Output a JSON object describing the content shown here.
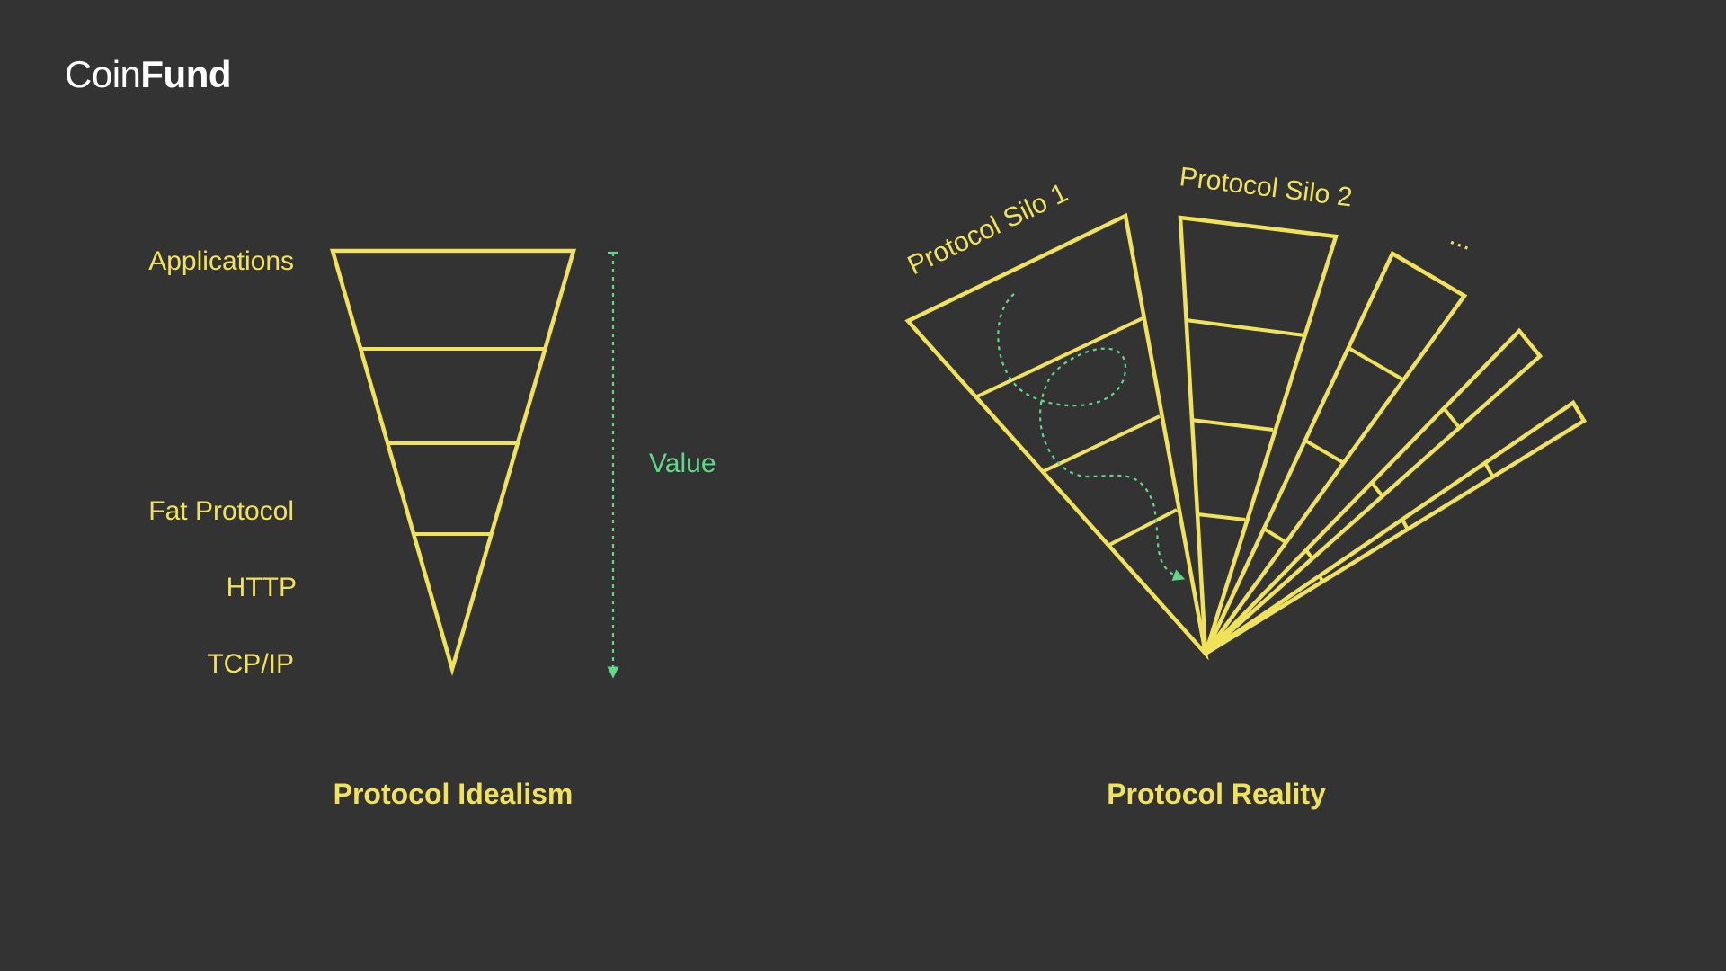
{
  "brand": {
    "logo_light": "Coin",
    "logo_bold": "Fund"
  },
  "idealism": {
    "layer_labels": {
      "applications": "Applications",
      "fat_protocol": "Fat Protocol",
      "http": "HTTP",
      "tcpip": "TCP/IP"
    },
    "value_label": "Value",
    "caption": "Protocol Idealism"
  },
  "reality": {
    "silo1_label": "Protocol Silo 1",
    "silo2_label": "Protocol Silo 2",
    "more_label": "...",
    "caption": "Protocol Reality"
  },
  "colors": {
    "background": "#333333",
    "accent_yellow": "#f0e35a",
    "accent_green": "#5fd88a",
    "logo": "#ffffff"
  }
}
